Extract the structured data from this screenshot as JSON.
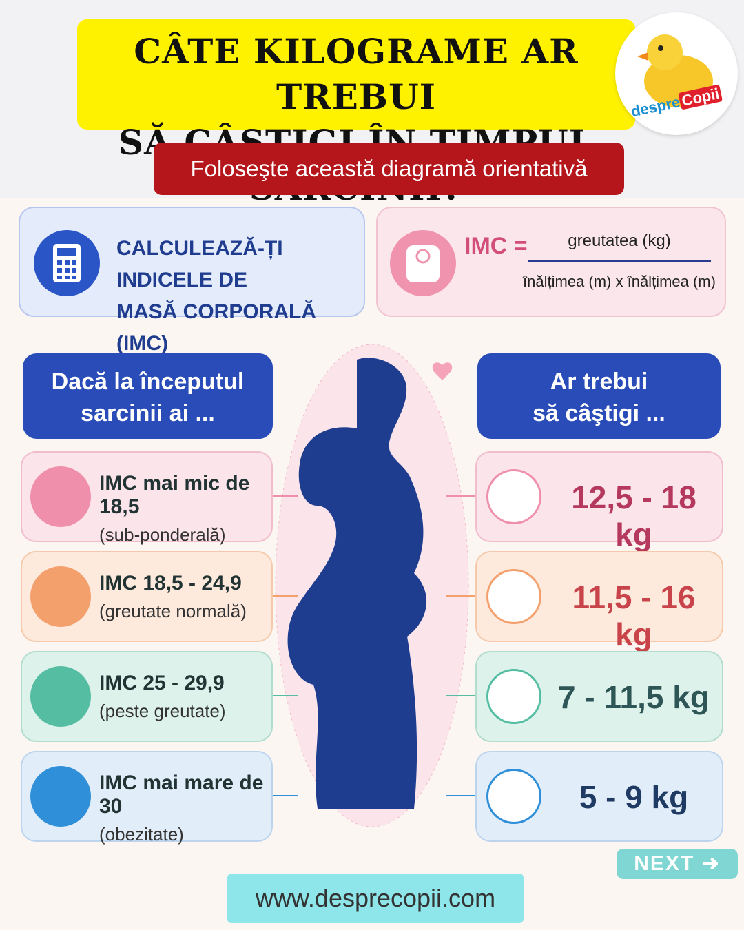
{
  "header": {
    "title_lines": [
      "CÂTE KILOGRAME AR TREBUI",
      "SĂ CÂŞTIGI ÎN TIMPUL SARCINII?"
    ],
    "logo": [
      "despre",
      "Copii"
    ],
    "subtitle": "Foloseşte această diagramă orientativă"
  },
  "bmi_box": {
    "lines": [
      "CALCULEAZĂ-ȚI INDICELE DE",
      "MASĂ CORPORALĂ (IMC)"
    ]
  },
  "formula": {
    "lhs": "IMC =",
    "numerator": "greutatea (kg)",
    "denominator": "înălțimea (m) x înălțimea (m)"
  },
  "left_header": [
    "Dacă la începutul",
    "sarcinii ai ..."
  ],
  "right_header": [
    "Ar trebui",
    "să câştigi ..."
  ],
  "rows": [
    {
      "condition": "IMC mai mic de 18,5",
      "category": "(sub-ponderală)",
      "gain": "12,5 - 18 kg"
    },
    {
      "condition": "IMC 18,5 - 24,9",
      "category": "(greutate normală)",
      "gain": "11,5 - 16 kg"
    },
    {
      "condition": "IMC 25 - 29,9",
      "category": "(peste greutate)",
      "gain": "7 - 11,5 kg"
    },
    {
      "condition": "IMC mai mare de 30",
      "category": "(obezitate)",
      "gain": "5 - 9 kg"
    }
  ],
  "footer": {
    "next": "NEXT",
    "url": "www.desprecopii.com"
  }
}
